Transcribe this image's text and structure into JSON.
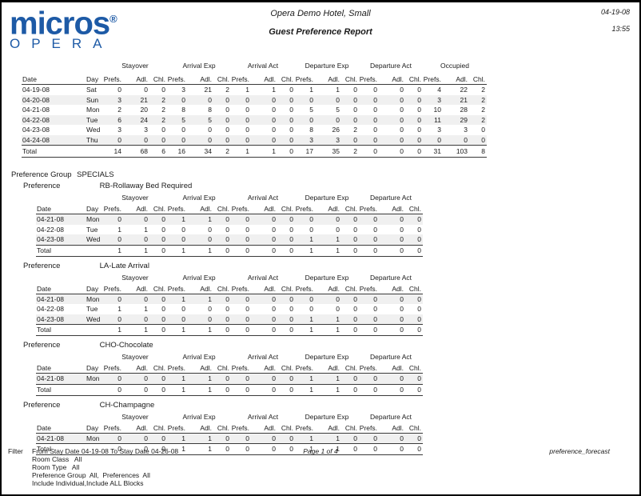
{
  "colors": {
    "brand_blue": "#1d5aa6",
    "stripe_gray": "#f0f0f0",
    "rule_gray": "#3a3a3a"
  },
  "logo": {
    "brand": "micros",
    "registered_mark": "®",
    "product": "OPERA"
  },
  "header": {
    "hotel_name": "Opera Demo Hotel, Small",
    "report_title": "Guest Preference Report",
    "date": "04-19-08",
    "time": "13:55"
  },
  "labels": {
    "preference_group": "Preference Group",
    "preference": "Preference",
    "total": "Total"
  },
  "columns": {
    "date": "Date",
    "day": "Day",
    "sub_labels": [
      "Prefs.",
      "Adl.",
      "Chl."
    ],
    "main_groups": [
      "Stayover",
      "Arrival Exp",
      "Arrival Act",
      "Departure Exp",
      "Departure Act",
      "Occupied"
    ],
    "sub_groups": [
      "Stayover",
      "Arrival Exp",
      "Arrival Act",
      "Departure Exp",
      "Departure Act"
    ]
  },
  "main_table": {
    "rows": [
      {
        "date": "04-19-08",
        "day": "Sat",
        "values": [
          0,
          0,
          0,
          3,
          21,
          2,
          1,
          1,
          0,
          1,
          1,
          0,
          0,
          0,
          0,
          4,
          22,
          2
        ]
      },
      {
        "date": "04-20-08",
        "day": "Sun",
        "values": [
          3,
          21,
          2,
          0,
          0,
          0,
          0,
          0,
          0,
          0,
          0,
          0,
          0,
          0,
          0,
          3,
          21,
          2
        ]
      },
      {
        "date": "04-21-08",
        "day": "Mon",
        "values": [
          2,
          20,
          2,
          8,
          8,
          0,
          0,
          0,
          0,
          5,
          5,
          0,
          0,
          0,
          0,
          10,
          28,
          2
        ]
      },
      {
        "date": "04-22-08",
        "day": "Tue",
        "values": [
          6,
          24,
          2,
          5,
          5,
          0,
          0,
          0,
          0,
          0,
          0,
          0,
          0,
          0,
          0,
          11,
          29,
          2
        ]
      },
      {
        "date": "04-23-08",
        "day": "Wed",
        "values": [
          3,
          3,
          0,
          0,
          0,
          0,
          0,
          0,
          0,
          8,
          26,
          2,
          0,
          0,
          0,
          3,
          3,
          0
        ]
      },
      {
        "date": "04-24-08",
        "day": "Thu",
        "values": [
          0,
          0,
          0,
          0,
          0,
          0,
          0,
          0,
          0,
          3,
          3,
          0,
          0,
          0,
          0,
          0,
          0,
          0
        ]
      }
    ],
    "total_values": [
      14,
      68,
      6,
      16,
      34,
      2,
      1,
      1,
      0,
      17,
      35,
      2,
      0,
      0,
      0,
      31,
      103,
      8
    ]
  },
  "preference_group_name": "SPECIALS",
  "sub_tables": [
    {
      "preference": "RB-Rollaway Bed Required",
      "rows": [
        {
          "date": "04-21-08",
          "day": "Mon",
          "values": [
            0,
            0,
            0,
            1,
            1,
            0,
            0,
            0,
            0,
            0,
            0,
            0,
            0,
            0,
            0
          ]
        },
        {
          "date": "04-22-08",
          "day": "Tue",
          "values": [
            1,
            1,
            0,
            0,
            0,
            0,
            0,
            0,
            0,
            0,
            0,
            0,
            0,
            0,
            0
          ]
        },
        {
          "date": "04-23-08",
          "day": "Wed",
          "values": [
            0,
            0,
            0,
            0,
            0,
            0,
            0,
            0,
            0,
            1,
            1,
            0,
            0,
            0,
            0
          ]
        }
      ],
      "total_values": [
        1,
        1,
        0,
        1,
        1,
        0,
        0,
        0,
        0,
        1,
        1,
        0,
        0,
        0,
        0
      ]
    },
    {
      "preference": "LA-Late Arrival",
      "rows": [
        {
          "date": "04-21-08",
          "day": "Mon",
          "values": [
            0,
            0,
            0,
            1,
            1,
            0,
            0,
            0,
            0,
            0,
            0,
            0,
            0,
            0,
            0
          ]
        },
        {
          "date": "04-22-08",
          "day": "Tue",
          "values": [
            1,
            1,
            0,
            0,
            0,
            0,
            0,
            0,
            0,
            0,
            0,
            0,
            0,
            0,
            0
          ]
        },
        {
          "date": "04-23-08",
          "day": "Wed",
          "values": [
            0,
            0,
            0,
            0,
            0,
            0,
            0,
            0,
            0,
            1,
            1,
            0,
            0,
            0,
            0
          ]
        }
      ],
      "total_values": [
        1,
        1,
        0,
        1,
        1,
        0,
        0,
        0,
        0,
        1,
        1,
        0,
        0,
        0,
        0
      ]
    },
    {
      "preference": "CHO-Chocolate",
      "rows": [
        {
          "date": "04-21-08",
          "day": "Mon",
          "values": [
            0,
            0,
            0,
            1,
            1,
            0,
            0,
            0,
            0,
            1,
            1,
            0,
            0,
            0,
            0
          ]
        }
      ],
      "total_values": [
        0,
        0,
        0,
        1,
        1,
        0,
        0,
        0,
        0,
        1,
        1,
        0,
        0,
        0,
        0
      ]
    },
    {
      "preference": "CH-Champagne",
      "rows": [
        {
          "date": "04-21-08",
          "day": "Mon",
          "values": [
            0,
            0,
            0,
            1,
            1,
            0,
            0,
            0,
            0,
            1,
            1,
            0,
            0,
            0,
            0
          ]
        }
      ],
      "total_values": [
        0,
        0,
        0,
        1,
        1,
        0,
        0,
        0,
        0,
        1,
        1,
        0,
        0,
        0,
        0
      ]
    }
  ],
  "footer": {
    "filter_label": "Filter",
    "filter_lines": [
      "From Stay Date 04-19-08 To Stay Date 04-26-08",
      "Room Class   All",
      "Room Type   All",
      "Preference Group  All,  Preferences  All",
      "Include Individual,Include ALL Blocks"
    ],
    "page_info": "Page 1 of 4",
    "report_name": "preference_forecast"
  }
}
